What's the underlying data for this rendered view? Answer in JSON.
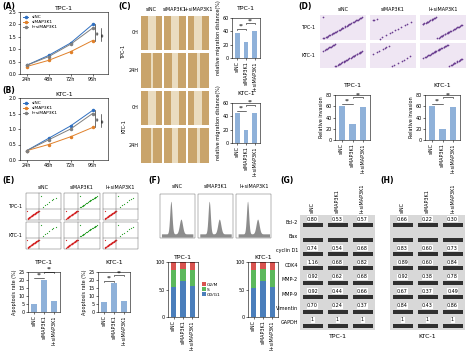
{
  "panel_labels": [
    "(A)",
    "(B)",
    "(C)",
    "(D)",
    "(E)",
    "(F)",
    "(G)",
    "(H)"
  ],
  "chart_data": [
    {
      "type": "line",
      "title": "TPC-1",
      "categories": [
        "24h",
        "48h",
        "72h",
        "96h"
      ],
      "series": [
        {
          "name": "siNC",
          "color": "#2f6fc0",
          "marker": "o",
          "line_style": "solid",
          "values": [
            0.35,
            0.75,
            1.25,
            2.0
          ]
        },
        {
          "name": "siMAP3K1",
          "color": "#e0802a",
          "marker": "o",
          "line_style": "solid",
          "values": [
            0.3,
            0.55,
            0.9,
            1.35
          ]
        },
        {
          "name": "I+siMAP3K1",
          "color": "#7f7f7f",
          "marker": "o",
          "line_style": "solid",
          "values": [
            0.35,
            0.7,
            1.2,
            1.85
          ]
        }
      ],
      "ylim": [
        0,
        2.5
      ],
      "yticks": [
        {
          "value": 0,
          "label": "0.0"
        },
        {
          "value": 0.5,
          "label": "0.5"
        },
        {
          "value": 1,
          "label": "1.0"
        },
        {
          "value": 1.5,
          "label": "1.5"
        },
        {
          "value": 2,
          "label": "2.0"
        },
        {
          "value": 2.5,
          "label": "2.5"
        }
      ],
      "legend": "upper left",
      "annotations": [
        "**",
        "**"
      ]
    },
    {
      "type": "line",
      "title": "KTC-1",
      "categories": [
        "24h",
        "48h",
        "72h",
        "96h"
      ],
      "series": [
        {
          "name": "siNC",
          "color": "#2f6fc0",
          "marker": "o",
          "line_style": "solid",
          "values": [
            0.3,
            0.7,
            1.1,
            1.6
          ]
        },
        {
          "name": "siMAP3K1",
          "color": "#e0802a",
          "marker": "o",
          "line_style": "solid",
          "values": [
            0.3,
            0.5,
            0.75,
            1.05
          ]
        },
        {
          "name": "I+siMAP3K1",
          "color": "#7f7f7f",
          "marker": "o",
          "line_style": "solid",
          "values": [
            0.3,
            0.65,
            1.0,
            1.5
          ]
        }
      ],
      "ylim": [
        0,
        2
      ],
      "yticks": [
        {
          "value": 0,
          "label": "0.0"
        },
        {
          "value": 0.5,
          "label": "0.5"
        },
        {
          "value": 1,
          "label": "1.0"
        },
        {
          "value": 1.5,
          "label": "1.5"
        },
        {
          "value": 2,
          "label": "2.0"
        }
      ],
      "legend": "upper left",
      "annotations": [
        "**",
        "**"
      ]
    },
    {
      "type": "bar",
      "title": "TPC-1",
      "y_label": "relative migration distance(%)",
      "categories": [
        "siNC",
        "siMAP3K1",
        "I+siMAP3K1"
      ],
      "values": [
        38,
        24,
        40
      ],
      "colors": [
        "#8fb1d9",
        "#8fb1d9",
        "#8fb1d9"
      ],
      "ylim": [
        0,
        60
      ],
      "yticks": [
        0,
        20,
        40,
        60
      ],
      "annotations": [
        "**",
        "**"
      ]
    },
    {
      "type": "bar",
      "title": "KTC-1",
      "y_label": "relative migration distance(%)",
      "categories": [
        "siNC",
        "siMAP3K1",
        "I+siMAP3K1"
      ],
      "values": [
        45,
        20,
        45
      ],
      "colors": [
        "#8fb1d9",
        "#8fb1d9",
        "#8fb1d9"
      ],
      "ylim": [
        0,
        60
      ],
      "yticks": [
        0,
        20,
        40,
        60
      ],
      "annotations": [
        "**",
        "**"
      ]
    },
    {
      "type": "bar",
      "title": "TPC-1",
      "y_label": "Relative invasion",
      "categories": [
        "siNC",
        "siMAP3K1",
        "I+siMAP3K1"
      ],
      "values": [
        60,
        28,
        58
      ],
      "colors": [
        "#8fb1d9",
        "#8fb1d9",
        "#8fb1d9"
      ],
      "ylim": [
        0,
        80
      ],
      "yticks": [
        0,
        20,
        40,
        60,
        80
      ],
      "annotations": [
        "**",
        "**"
      ]
    },
    {
      "type": "bar",
      "title": "KTC-1",
      "y_label": "Relative invasion",
      "categories": [
        "siNC",
        "siMAP3K1",
        "I+siMAP3K1"
      ],
      "values": [
        60,
        20,
        58
      ],
      "colors": [
        "#8fb1d9",
        "#8fb1d9",
        "#8fb1d9"
      ],
      "ylim": [
        0,
        80
      ],
      "yticks": [
        0,
        20,
        40,
        60,
        80
      ],
      "annotations": [
        "**",
        "**"
      ]
    },
    {
      "type": "bar",
      "title": "TPC-1",
      "y_label": "Apoptosis rate (%)",
      "categories": [
        "siNC",
        "siMAP3K1",
        "I+siMAP3K1"
      ],
      "values": [
        5,
        20,
        7
      ],
      "colors": [
        "#8fb1d9",
        "#8fb1d9",
        "#8fb1d9"
      ],
      "ylim": [
        0,
        25
      ],
      "yticks": [
        0,
        5,
        10,
        15,
        20,
        25
      ],
      "annotations": [
        "**",
        "**"
      ]
    },
    {
      "type": "bar",
      "title": "KTC-1",
      "y_label": "Apoptosis rate (%)",
      "categories": [
        "siNC",
        "siMAP3K1",
        "I+siMAP3K1"
      ],
      "values": [
        6,
        18,
        7
      ],
      "colors": [
        "#8fb1d9",
        "#8fb1d9",
        "#8fb1d9"
      ],
      "ylim": [
        0,
        25
      ],
      "yticks": [
        0,
        5,
        10,
        15,
        20,
        25
      ],
      "annotations": [
        "**",
        "**"
      ]
    },
    {
      "type": "bar",
      "stacked": true,
      "title": "TPC-1",
      "categories": [
        "siNC",
        "siMAP3K1",
        "I+siMAP3K1"
      ],
      "series": [
        {
          "name": "G0/G1",
          "color": "#4a7ebb",
          "values": [
            55,
            65,
            57
          ]
        },
        {
          "name": "S",
          "color": "#5cb85c",
          "values": [
            30,
            22,
            29
          ]
        },
        {
          "name": "G2/M",
          "color": "#d9534f",
          "values": [
            15,
            13,
            14
          ]
        }
      ],
      "ylim": [
        0,
        100
      ],
      "yticks": [
        0,
        50,
        100
      ],
      "legend": "center left"
    },
    {
      "type": "bar",
      "stacked": true,
      "title": "KTC-1",
      "categories": [
        "siNC",
        "siMAP3K1",
        "I+siMAP3K1"
      ],
      "series": [
        {
          "name": "G0/G1",
          "color": "#4a7ebb",
          "values": [
            52,
            66,
            55
          ]
        },
        {
          "name": "S",
          "color": "#5cb85c",
          "values": [
            33,
            22,
            31
          ]
        },
        {
          "name": "G2/M",
          "color": "#d9534f",
          "values": [
            15,
            12,
            14
          ]
        }
      ],
      "ylim": [
        0,
        100
      ],
      "yticks": [
        0,
        50,
        100
      ]
    }
  ],
  "images": [
    {
      "columns": [
        "siNC",
        "siMAP3K1",
        "I+siMAP3K1"
      ],
      "rows": [
        "0H",
        "24H",
        "0H",
        "24H"
      ],
      "groups": [
        "TPC-1",
        "KTC-1"
      ]
    },
    {
      "columns": [
        "siNC",
        "siMAP3K1",
        "I+siMAP3K1"
      ],
      "rows": [
        "TPC-1",
        "KTC-1"
      ]
    },
    {
      "columns": [
        "siNC",
        "siMAP3K1",
        "I+siMAP3K1"
      ],
      "rows": [
        "TPC-1",
        "KTC-1"
      ]
    },
    {
      "columns": [
        "siNC",
        "siMAP3K1",
        "I+siMAP3K1"
      ]
    }
  ],
  "blots": {
    "row_labels": [
      "Bcl-2",
      "Bax",
      "cyclin D1",
      "CDK4",
      "MMP-2",
      "MMP-9",
      "Vimentin",
      "GAPDH"
    ],
    "panels": [
      {
        "title": "TPC-1",
        "columns": [
          "siNC",
          "siMAP3K1",
          "I+siMAP3K1"
        ],
        "rows": [
          [
            "0.80",
            "0.53",
            "0.57"
          ],
          [
            null,
            null,
            null
          ],
          [
            "0.74",
            "0.54",
            "0.68"
          ],
          [
            "1.16",
            "0.68",
            "0.82"
          ],
          [
            "0.92",
            "0.62",
            "0.68"
          ],
          [
            "0.92",
            "0.44",
            "0.66"
          ],
          [
            "0.70",
            "0.24",
            "0.37"
          ],
          [
            "1",
            "1",
            "1"
          ]
        ]
      },
      {
        "title": "KTC-1",
        "columns": [
          "siNC",
          "siMAP3K1",
          "I+siMAP3K1"
        ],
        "rows": [
          [
            "0.66",
            "0.22",
            "0.30"
          ],
          [
            null,
            null,
            null
          ],
          [
            "0.83",
            "0.60",
            "0.73"
          ],
          [
            "0.89",
            "0.60",
            "0.84"
          ],
          [
            "0.92",
            "0.38",
            "0.78"
          ],
          [
            "0.67",
            "0.37",
            "0.49"
          ],
          [
            "0.84",
            "0.43",
            "0.86"
          ],
          [
            "1",
            "1",
            "1"
          ]
        ]
      }
    ]
  }
}
